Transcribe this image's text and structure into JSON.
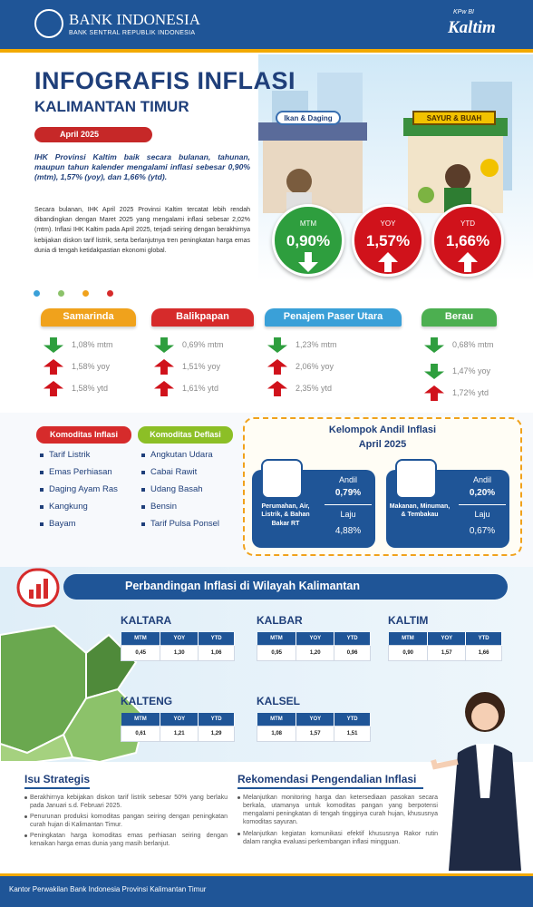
{
  "header": {
    "bank_name": "BANK INDONESIA",
    "bank_sub": "BANK SENTRAL REPUBLIK INDONESIA",
    "logo_small": "KPw BI",
    "logo_big": "Kaltim"
  },
  "title": "INFOGRAFIS INFLASI",
  "subtitle": "KALIMANTAN TIMUR",
  "date": "April 2025",
  "intro_bold": "IHK Provinsi Kaltim baik secara bulanan, tahunan, maupun tahun kalender mengalami inflasi sebesar 0,90% (mtm), 1,57% (yoy), dan 1,66% (ytd).",
  "intro_body": "Secara bulanan, IHK April 2025 Provinsi Kaltim tercatat lebih rendah dibandingkan dengan Maret 2025 yang mengalami inflasi sebesar 2,02% (mtm). Inflasi IHK Kaltim pada April 2025, terjadi seiring dengan berakhirnya kebijakan diskon tarif listrik, serta berlanjutnya tren peningkatan harga emas dunia di tengah ketidakpastian ekonomi global.",
  "market_signs": [
    "Ikan & Daging",
    "SAYUR & BUAH"
  ],
  "headline": [
    {
      "label": "MTM",
      "value": "0,90%",
      "dir": "down",
      "color": "#2e9e3e"
    },
    {
      "label": "YOY",
      "value": "1,57%",
      "dir": "up",
      "color": "#d0121b"
    },
    {
      "label": "YTD",
      "value": "1,66%",
      "dir": "up",
      "color": "#d0121b"
    }
  ],
  "cities": [
    {
      "name": "Samarinda",
      "color": "#f0a21c",
      "rows": [
        {
          "dir": "down",
          "text": "1,08% mtm"
        },
        {
          "dir": "up",
          "text": "1,58% yoy"
        },
        {
          "dir": "up",
          "text": "1,58% ytd"
        }
      ]
    },
    {
      "name": "Balikpapan",
      "color": "#d62b2b",
      "rows": [
        {
          "dir": "down",
          "text": "0,69% mtm"
        },
        {
          "dir": "up",
          "text": "1,51% yoy"
        },
        {
          "dir": "up",
          "text": "1,61% ytd"
        }
      ]
    },
    {
      "name": "Penajem Paser Utara",
      "color": "#3aa0d8",
      "rows": [
        {
          "dir": "down",
          "text": "1,23% mtm"
        },
        {
          "dir": "up",
          "text": "2,06% yoy"
        },
        {
          "dir": "up",
          "text": "2,35% ytd"
        }
      ]
    },
    {
      "name": "Berau",
      "color": "#4caf50",
      "rows": [
        {
          "dir": "down",
          "text": "0,68% mtm"
        },
        {
          "dir": "down",
          "text": "1,47% yoy"
        },
        {
          "dir": "up",
          "text": "1,72% ytd"
        }
      ]
    }
  ],
  "komoditas_inflasi": {
    "title": "Komoditas Inflasi",
    "items": [
      "Tarif Listrik",
      "Emas Perhiasan",
      "Daging Ayam Ras",
      "Kangkung",
      "Bayam"
    ]
  },
  "komoditas_deflasi": {
    "title": "Komoditas Deflasi",
    "items": [
      "Angkutan Udara",
      "Cabai Rawit",
      "Udang Basah",
      "Bensin",
      "Tarif Pulsa Ponsel"
    ]
  },
  "andil": {
    "title": "Kelompok Andil Inflasi",
    "subtitle": "April 2025",
    "groups": [
      {
        "name": "Perumahan, Air, Listrik, & Bahan Bakar RT",
        "andil_label": "Andil",
        "andil": "0,79%",
        "laju_label": "Laju",
        "laju": "4,88%"
      },
      {
        "name": "Makanan, Minuman, & Tembakau",
        "andil_label": "Andil",
        "andil": "0,20%",
        "laju_label": "Laju",
        "laju": "0,67%"
      }
    ]
  },
  "comparison": {
    "title": "Perbandingan  Inflasi di Wilayah Kalimantan",
    "regions": [
      {
        "name": "KALTARA",
        "headers": [
          "MTM",
          "YOY",
          "YTD"
        ],
        "values": [
          "0,45",
          "1,30",
          "1,06"
        ]
      },
      {
        "name": "KALBAR",
        "headers": [
          "MTM",
          "YOY",
          "YTD"
        ],
        "values": [
          "0,95",
          "1,20",
          "0,96"
        ]
      },
      {
        "name": "KALTIM",
        "headers": [
          "MTM",
          "YOY",
          "YTD"
        ],
        "values": [
          "0,90",
          "1,57",
          "1,66"
        ]
      },
      {
        "name": "KALTENG",
        "headers": [
          "MTM",
          "YOY",
          "YTD"
        ],
        "values": [
          "0,61",
          "1,21",
          "1,29"
        ]
      },
      {
        "name": "KALSEL",
        "headers": [
          "MTM",
          "YOY",
          "YTD"
        ],
        "values": [
          "1,08",
          "1,57",
          "1,51"
        ]
      }
    ]
  },
  "isu": {
    "title": "Isu Strategis",
    "items": [
      "Berakhirnya kebijakan diskon tarif listrik sebesar 50% yang berlaku pada Januari s.d. Februari 2025.",
      "Penurunan produksi komoditas pangan seiring dengan peningkatan curah hujan di Kalimantan Timur.",
      "Peningkatan harga komoditas emas perhiasan seiring dengan kenaikan harga emas dunia yang masih berlanjut."
    ]
  },
  "rekomendasi": {
    "title": "Rekomendasi Pengendalian Inflasi",
    "items": [
      "Melanjutkan monitoring harga dan ketersediaan pasokan secara berkala, utamanya untuk komoditas pangan yang berpotensi mengalami peningkatan di tengah tingginya curah hujan, khususnya komoditas sayuran.",
      "Melanjutkan kegiatan komunikasi efektif khususnya Rakor rutin dalam rangka evaluasi perkembangan inflasi mingguan."
    ]
  },
  "footer": "Kantor Perwakilan Bank Indonesia Provinsi Kalimantan Timur"
}
